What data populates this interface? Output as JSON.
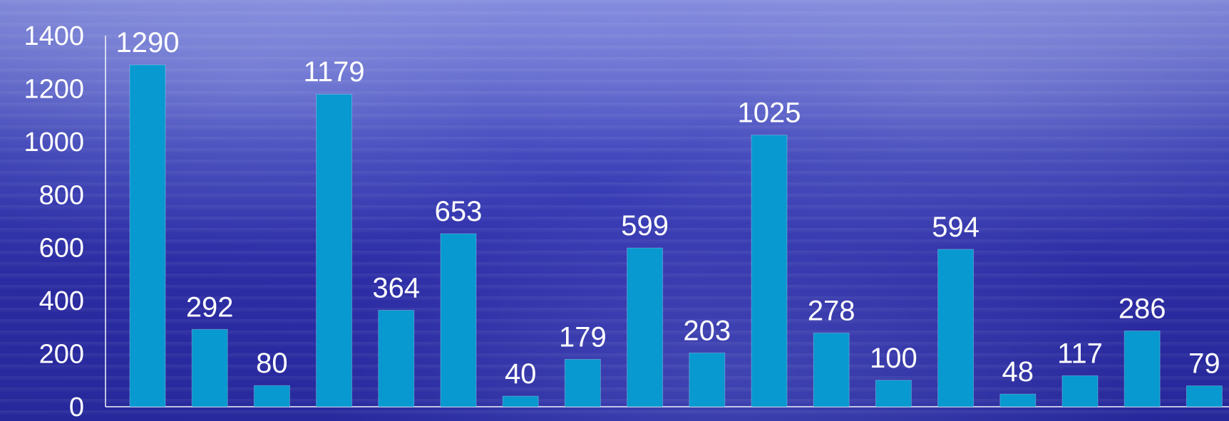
{
  "chart_data": {
    "type": "bar",
    "values": [
      1290,
      292,
      80,
      1179,
      364,
      653,
      40,
      179,
      599,
      203,
      1025,
      278,
      100,
      594,
      48,
      117,
      286,
      79
    ],
    "ylim": [
      0,
      1400
    ],
    "y_ticks": [
      "0",
      "200",
      "400",
      "600",
      "800",
      "1000",
      "1200",
      "1400"
    ],
    "grid": false,
    "colors": {
      "bar": "#0799cf",
      "text": "#ffffff",
      "axis": "#ffffff"
    }
  }
}
